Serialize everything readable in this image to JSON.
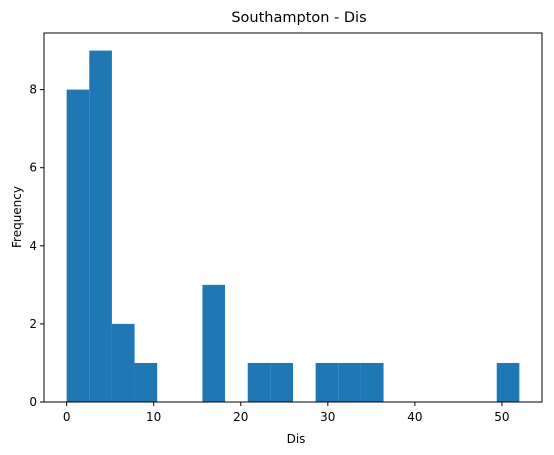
{
  "chart_data": {
    "type": "bar",
    "title": "Southampton - Dis",
    "xlabel": "Dis",
    "ylabel": "Frequency",
    "xlim": [
      -2.6,
      54.6
    ],
    "ylim": [
      0,
      9.45
    ],
    "xticks": [
      0,
      10,
      20,
      30,
      40,
      50
    ],
    "yticks": [
      0,
      2,
      4,
      6,
      8
    ],
    "bin_edges": [
      0,
      2.6,
      5.2,
      7.8,
      10.4,
      13.0,
      15.6,
      18.2,
      20.8,
      23.4,
      26.0,
      28.6,
      31.2,
      33.8,
      36.4,
      39.0,
      41.6,
      44.2,
      46.8,
      49.4,
      52.0
    ],
    "values": [
      8,
      9,
      2,
      1,
      0,
      0,
      3,
      0,
      1,
      1,
      0,
      1,
      1,
      1,
      0,
      0,
      0,
      0,
      0,
      1
    ],
    "color": "#1f77b4"
  }
}
